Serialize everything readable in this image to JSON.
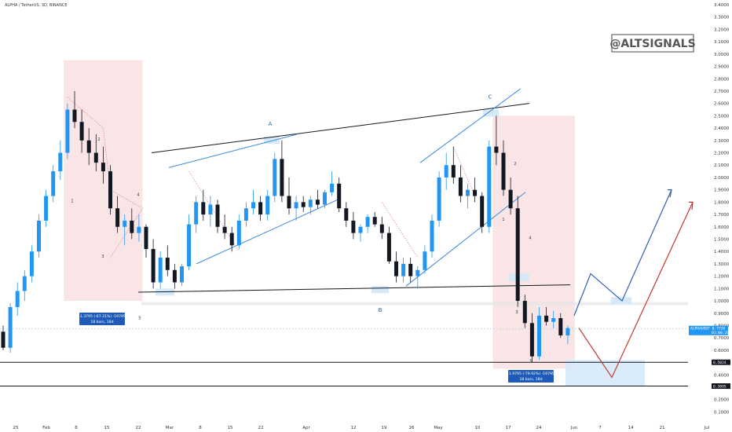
{
  "title": "ALPHA / TetherUS, 3D, BINANCE",
  "watermark": "@ALTSIGNALS",
  "colors": {
    "up": "#2196f3",
    "down": "#131722",
    "zone": "#f7dede",
    "support_box": "#d6e9f8",
    "blue_path": "#2f5fb8",
    "red_path": "#c0392b",
    "channel": "#3a8ad8"
  },
  "chart_data": {
    "type": "candlestick",
    "y_axis": {
      "min": 0.0,
      "max": 3.4,
      "ticks": [
        "3.4000",
        "3.3000",
        "3.2000",
        "3.1000",
        "3.0000",
        "2.9000",
        "2.8000",
        "2.7000",
        "2.6000",
        "2.5000",
        "2.4000",
        "2.3000",
        "2.2000",
        "2.1000",
        "2.0000",
        "1.9000",
        "1.8000",
        "1.7000",
        "1.6000",
        "1.5000",
        "1.4000",
        "1.3000",
        "1.2000",
        "1.1000",
        "1.0000",
        "0.9000",
        "0.8000",
        "0.7000",
        "0.6000",
        "0.5000",
        "0.4000",
        "0.3000",
        "0.2000",
        "0.1000"
      ]
    },
    "x_axis": {
      "labels": [
        "25",
        "Feb",
        "8",
        "15",
        "22",
        "Mar",
        "8",
        "15",
        "22",
        "Apr",
        "12",
        "19",
        "26",
        "May",
        "10",
        "17",
        "24",
        "Jun",
        "7",
        "14",
        "21",
        "Jul"
      ]
    },
    "candles": [
      [
        0.75,
        0.8,
        0.6,
        0.62
      ],
      [
        0.62,
        0.98,
        0.58,
        0.95
      ],
      [
        0.95,
        1.15,
        0.88,
        1.08
      ],
      [
        1.08,
        1.25,
        1.0,
        1.2
      ],
      [
        1.2,
        1.45,
        1.15,
        1.4
      ],
      [
        1.4,
        1.7,
        1.35,
        1.65
      ],
      [
        1.65,
        1.9,
        1.6,
        1.85
      ],
      [
        1.85,
        2.1,
        1.8,
        2.05
      ],
      [
        2.05,
        2.3,
        1.98,
        2.2
      ],
      [
        2.2,
        2.6,
        2.15,
        2.55
      ],
      [
        2.55,
        2.7,
        2.4,
        2.45
      ],
      [
        2.45,
        2.55,
        2.2,
        2.3
      ],
      [
        2.3,
        2.4,
        2.1,
        2.2
      ],
      [
        2.2,
        2.35,
        2.05,
        2.12
      ],
      [
        2.12,
        2.25,
        1.95,
        2.05
      ],
      [
        2.05,
        2.1,
        1.7,
        1.75
      ],
      [
        1.75,
        1.85,
        1.55,
        1.6
      ],
      [
        1.6,
        1.7,
        1.45,
        1.65
      ],
      [
        1.65,
        1.75,
        1.5,
        1.55
      ],
      [
        1.55,
        1.7,
        1.48,
        1.6
      ],
      [
        1.6,
        1.62,
        1.35,
        1.42
      ],
      [
        1.42,
        1.5,
        1.1,
        1.15
      ],
      [
        1.15,
        1.4,
        1.1,
        1.35
      ],
      [
        1.35,
        1.45,
        1.2,
        1.25
      ],
      [
        1.25,
        1.3,
        1.1,
        1.15
      ],
      [
        1.15,
        1.3,
        1.12,
        1.28
      ],
      [
        1.28,
        1.7,
        1.25,
        1.62
      ],
      [
        1.62,
        1.85,
        1.55,
        1.8
      ],
      [
        1.8,
        1.9,
        1.65,
        1.7
      ],
      [
        1.7,
        1.85,
        1.6,
        1.78
      ],
      [
        1.78,
        1.82,
        1.55,
        1.6
      ],
      [
        1.6,
        1.7,
        1.5,
        1.55
      ],
      [
        1.55,
        1.6,
        1.4,
        1.45
      ],
      [
        1.45,
        1.7,
        1.42,
        1.65
      ],
      [
        1.65,
        1.8,
        1.6,
        1.75
      ],
      [
        1.75,
        1.9,
        1.7,
        1.8
      ],
      [
        1.8,
        1.85,
        1.65,
        1.7
      ],
      [
        1.7,
        1.9,
        1.65,
        1.85
      ],
      [
        1.85,
        2.2,
        1.8,
        2.15
      ],
      [
        2.15,
        2.3,
        1.8,
        1.85
      ],
      [
        1.85,
        2.0,
        1.7,
        1.75
      ],
      [
        1.75,
        1.85,
        1.65,
        1.8
      ],
      [
        1.8,
        1.85,
        1.72,
        1.76
      ],
      [
        1.76,
        1.85,
        1.7,
        1.82
      ],
      [
        1.82,
        1.9,
        1.75,
        1.78
      ],
      [
        1.78,
        1.9,
        1.75,
        1.88
      ],
      [
        1.88,
        2.05,
        1.85,
        1.95
      ],
      [
        1.95,
        2.0,
        1.72,
        1.75
      ],
      [
        1.75,
        1.8,
        1.6,
        1.65
      ],
      [
        1.65,
        1.72,
        1.5,
        1.55
      ],
      [
        1.55,
        1.62,
        1.48,
        1.6
      ],
      [
        1.6,
        1.7,
        1.55,
        1.68
      ],
      [
        1.68,
        1.72,
        1.6,
        1.62
      ],
      [
        1.62,
        1.68,
        1.5,
        1.55
      ],
      [
        1.55,
        1.6,
        1.3,
        1.32
      ],
      [
        1.32,
        1.4,
        1.15,
        1.2
      ],
      [
        1.2,
        1.35,
        1.15,
        1.3
      ],
      [
        1.3,
        1.35,
        1.15,
        1.2
      ],
      [
        1.2,
        1.28,
        1.1,
        1.25
      ],
      [
        1.25,
        1.45,
        1.22,
        1.4
      ],
      [
        1.4,
        1.7,
        1.35,
        1.65
      ],
      [
        1.65,
        2.05,
        1.6,
        2.0
      ],
      [
        2.0,
        2.2,
        1.9,
        2.1
      ],
      [
        2.1,
        2.25,
        1.95,
        2.0
      ],
      [
        2.0,
        2.1,
        1.8,
        1.85
      ],
      [
        1.85,
        1.95,
        1.75,
        1.9
      ],
      [
        1.9,
        2.0,
        1.8,
        1.85
      ],
      [
        1.85,
        1.88,
        1.55,
        1.6
      ],
      [
        1.6,
        2.3,
        1.55,
        2.25
      ],
      [
        2.25,
        2.5,
        2.1,
        2.2
      ],
      [
        2.2,
        2.3,
        1.85,
        1.9
      ],
      [
        1.9,
        2.0,
        1.7,
        1.75
      ],
      [
        1.75,
        1.85,
        0.95,
        1.0
      ],
      [
        1.0,
        1.05,
        0.78,
        0.82
      ],
      [
        0.82,
        0.9,
        0.5,
        0.55
      ],
      [
        0.55,
        0.95,
        0.52,
        0.88
      ],
      [
        0.88,
        0.95,
        0.8,
        0.83
      ],
      [
        0.83,
        0.92,
        0.78,
        0.86
      ],
      [
        0.86,
        0.9,
        0.7,
        0.72
      ],
      [
        0.72,
        0.8,
        0.65,
        0.78
      ]
    ],
    "annotations": {
      "pattern_labels": [
        "A",
        "B",
        "C"
      ],
      "wave_labels": [
        "1",
        "2",
        "3",
        "4",
        "5"
      ],
      "measure_boxes": [
        {
          "line1": "-1.3795 (-67.21%) -19795",
          "line2": "18 bars, 18d"
        },
        {
          "line1": "-1.9795 (-79.92%) -19795",
          "line2": "18 bars, 18d"
        }
      ],
      "price_tags": [
        {
          "text": "ALPHAUSDT  0.7726",
          "sub": "01:00:20",
          "value": 0.7726
        },
        {
          "text": "0.5024",
          "value": 0.5024
        },
        {
          "text": "0.3095",
          "value": 0.3095
        }
      ]
    }
  }
}
